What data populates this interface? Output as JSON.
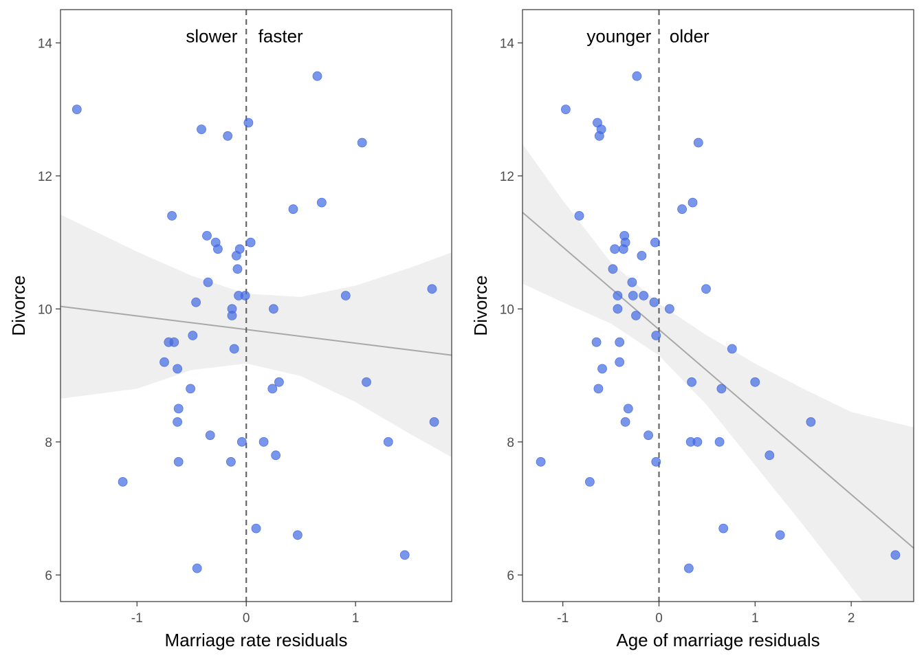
{
  "colors": {
    "point": "#4169E1",
    "fit_line": "#a8a8a8",
    "ribbon": "#e6e6e6",
    "ref_line": "#666666",
    "frame": "#333333"
  },
  "chart_data": [
    {
      "type": "scatter",
      "xlabel": "Marriage rate residuals",
      "ylabel": "Divorce",
      "xlim": [
        -1.7,
        1.88
      ],
      "ylim": [
        5.6,
        14.5
      ],
      "xticks": [
        -1,
        0,
        1
      ],
      "xtick_labels": [
        "-1",
        "0",
        "1"
      ],
      "yticks": [
        6,
        8,
        10,
        12,
        14
      ],
      "ytick_labels": [
        "6",
        "8",
        "10",
        "12",
        "14"
      ],
      "reference_line_x": 0,
      "annotations": [
        {
          "text": "slower",
          "x": -0.08,
          "y": 14.1,
          "anchor": "end"
        },
        {
          "text": "faster",
          "x": 0.11,
          "y": 14.1,
          "anchor": "start"
        }
      ],
      "fit": {
        "intercept": 9.69,
        "slope": -0.205
      },
      "ribbon": {
        "x": [
          -1.7,
          -1.0,
          -0.5,
          0.0,
          0.5,
          1.0,
          1.5,
          1.88
        ],
        "upper": [
          11.42,
          10.86,
          10.5,
          10.23,
          10.18,
          10.35,
          10.62,
          10.85
        ],
        "lower": [
          8.65,
          8.8,
          9.08,
          9.18,
          8.99,
          8.6,
          8.12,
          7.77
        ]
      },
      "points": [
        [
          -1.55,
          13.0
        ],
        [
          -0.41,
          12.7
        ],
        [
          -0.17,
          12.6
        ],
        [
          0.02,
          12.8
        ],
        [
          0.65,
          13.5
        ],
        [
          1.06,
          12.5
        ],
        [
          0.69,
          11.6
        ],
        [
          0.43,
          11.5
        ],
        [
          -0.68,
          11.4
        ],
        [
          -0.36,
          11.1
        ],
        [
          -0.28,
          11.0
        ],
        [
          -0.26,
          10.9
        ],
        [
          -0.06,
          10.9
        ],
        [
          0.04,
          11.0
        ],
        [
          -0.09,
          10.8
        ],
        [
          -0.08,
          10.6
        ],
        [
          -0.35,
          10.4
        ],
        [
          1.7,
          10.3
        ],
        [
          -0.46,
          10.1
        ],
        [
          -0.07,
          10.2
        ],
        [
          -0.01,
          10.2
        ],
        [
          0.91,
          10.2
        ],
        [
          -0.13,
          10.0
        ],
        [
          0.25,
          10.0
        ],
        [
          -0.13,
          9.9
        ],
        [
          -0.71,
          9.5
        ],
        [
          -0.66,
          9.5
        ],
        [
          -0.49,
          9.6
        ],
        [
          -0.11,
          9.4
        ],
        [
          -0.75,
          9.2
        ],
        [
          -0.63,
          9.1
        ],
        [
          0.3,
          8.9
        ],
        [
          1.1,
          8.9
        ],
        [
          -0.51,
          8.8
        ],
        [
          0.24,
          8.8
        ],
        [
          -0.62,
          8.5
        ],
        [
          -0.63,
          8.3
        ],
        [
          1.72,
          8.3
        ],
        [
          -0.33,
          8.1
        ],
        [
          -0.04,
          8.0
        ],
        [
          0.16,
          8.0
        ],
        [
          1.3,
          8.0
        ],
        [
          0.27,
          7.8
        ],
        [
          -0.62,
          7.7
        ],
        [
          -0.14,
          7.7
        ],
        [
          -1.13,
          7.4
        ],
        [
          0.09,
          6.7
        ],
        [
          0.47,
          6.6
        ],
        [
          1.45,
          6.3
        ],
        [
          -0.45,
          6.1
        ]
      ]
    },
    {
      "type": "scatter",
      "xlabel": "Age of marriage residuals",
      "ylabel": "Divorce",
      "xlim": [
        -1.42,
        2.65
      ],
      "ylim": [
        5.6,
        14.5
      ],
      "xticks": [
        -1,
        0,
        1,
        2
      ],
      "xtick_labels": [
        "-1",
        "0",
        "1",
        "2"
      ],
      "yticks": [
        6,
        8,
        10,
        12,
        14
      ],
      "ytick_labels": [
        "6",
        "8",
        "10",
        "12",
        "14"
      ],
      "reference_line_x": 0,
      "annotations": [
        {
          "text": "younger",
          "x": -0.08,
          "y": 14.1,
          "anchor": "end"
        },
        {
          "text": "older",
          "x": 0.11,
          "y": 14.1,
          "anchor": "start"
        }
      ],
      "fit": {
        "intercept": 9.69,
        "slope": -1.24
      },
      "ribbon": {
        "x": [
          -1.42,
          -1.0,
          -0.5,
          0.0,
          0.5,
          1.0,
          1.5,
          2.0,
          2.65
        ],
        "upper": [
          12.48,
          11.63,
          10.7,
          10.08,
          9.6,
          9.18,
          8.8,
          8.45,
          8.22
        ],
        "lower": [
          10.38,
          10.1,
          9.78,
          9.3,
          8.55,
          7.65,
          6.75,
          5.82,
          4.62
        ]
      },
      "points": [
        [
          -0.97,
          13.0
        ],
        [
          -0.64,
          12.8
        ],
        [
          -0.6,
          12.7
        ],
        [
          -0.62,
          12.6
        ],
        [
          -0.23,
          13.5
        ],
        [
          0.41,
          12.5
        ],
        [
          0.35,
          11.6
        ],
        [
          0.24,
          11.5
        ],
        [
          -0.83,
          11.4
        ],
        [
          -0.36,
          11.1
        ],
        [
          -0.35,
          11.0
        ],
        [
          -0.04,
          11.0
        ],
        [
          -0.46,
          10.9
        ],
        [
          -0.37,
          10.9
        ],
        [
          -0.18,
          10.8
        ],
        [
          -0.48,
          10.6
        ],
        [
          -0.28,
          10.4
        ],
        [
          0.49,
          10.3
        ],
        [
          -0.43,
          10.2
        ],
        [
          -0.27,
          10.2
        ],
        [
          -0.16,
          10.2
        ],
        [
          -0.05,
          10.1
        ],
        [
          -0.43,
          10.0
        ],
        [
          0.11,
          10.0
        ],
        [
          -0.24,
          9.9
        ],
        [
          -0.65,
          9.5
        ],
        [
          -0.41,
          9.5
        ],
        [
          -0.03,
          9.6
        ],
        [
          0.76,
          9.4
        ],
        [
          -0.41,
          9.2
        ],
        [
          -0.59,
          9.1
        ],
        [
          0.34,
          8.9
        ],
        [
          1.0,
          8.9
        ],
        [
          -0.63,
          8.8
        ],
        [
          0.65,
          8.8
        ],
        [
          -0.32,
          8.5
        ],
        [
          -0.35,
          8.3
        ],
        [
          1.58,
          8.3
        ],
        [
          -0.11,
          8.1
        ],
        [
          0.33,
          8.0
        ],
        [
          0.4,
          8.0
        ],
        [
          0.63,
          8.0
        ],
        [
          1.15,
          7.8
        ],
        [
          -1.23,
          7.7
        ],
        [
          -0.03,
          7.7
        ],
        [
          -0.72,
          7.4
        ],
        [
          0.67,
          6.7
        ],
        [
          1.26,
          6.6
        ],
        [
          2.46,
          6.3
        ],
        [
          0.31,
          6.1
        ]
      ]
    }
  ]
}
